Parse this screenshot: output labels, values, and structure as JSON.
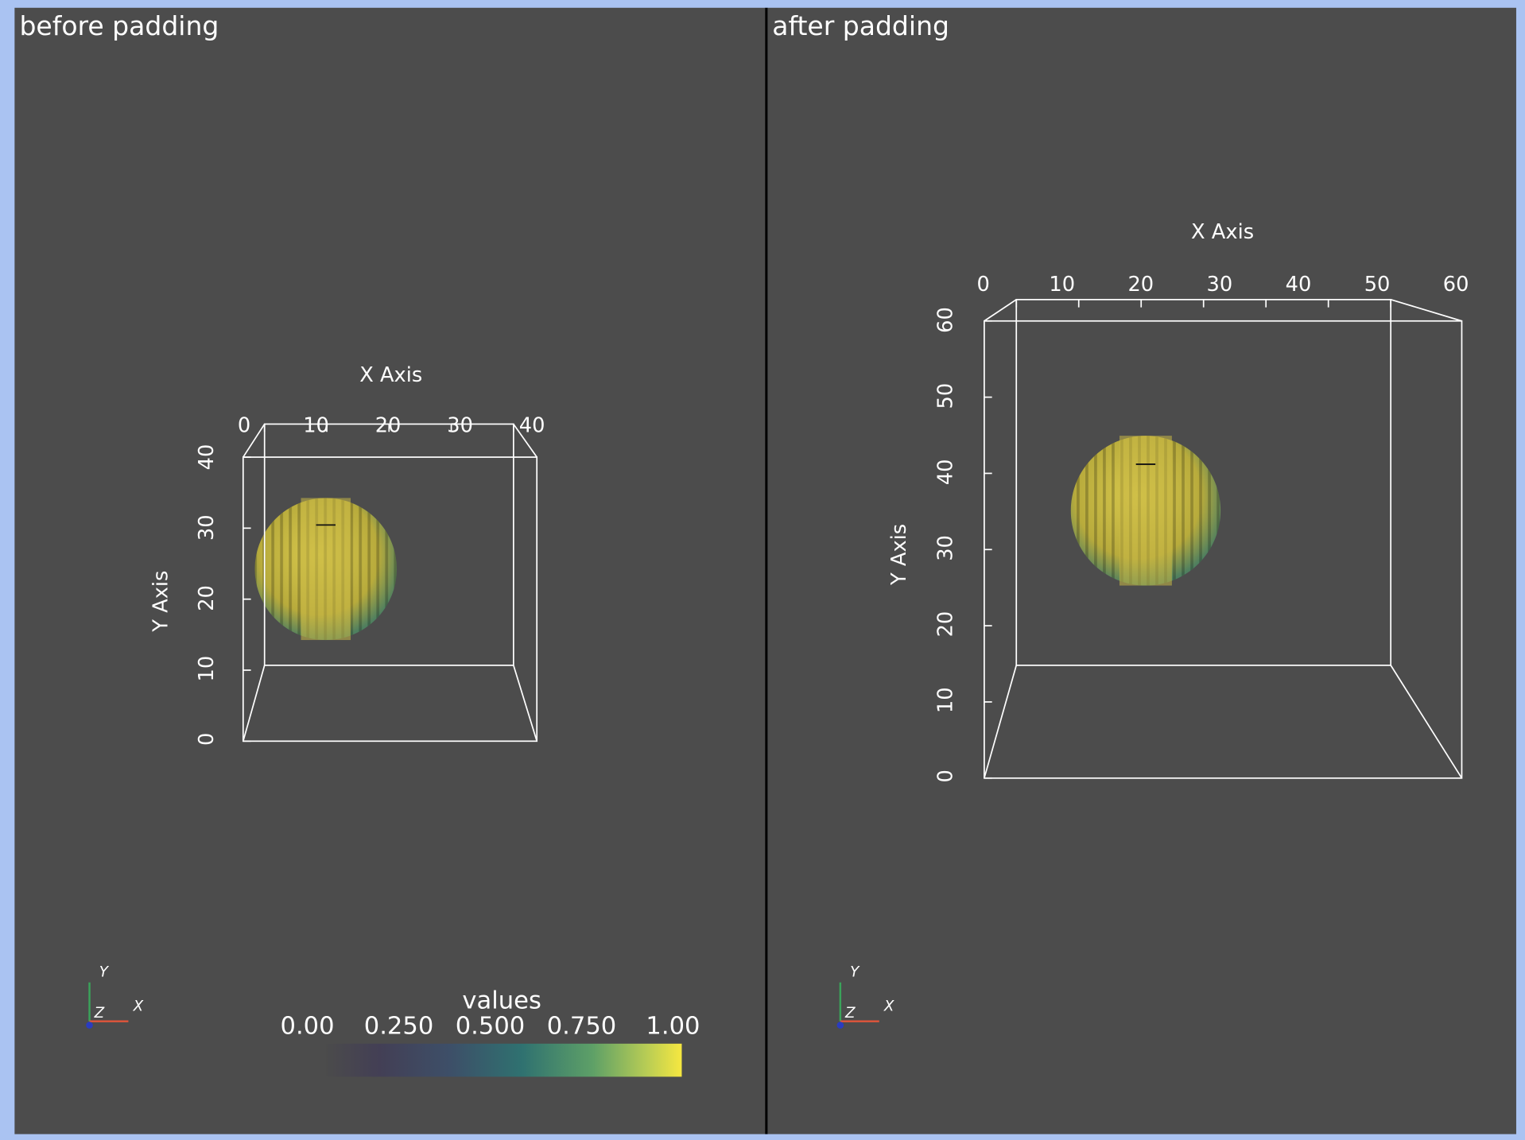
{
  "views": [
    {
      "title": "before padding",
      "x_axis": {
        "label": "X Axis",
        "ticks": [
          0,
          10,
          20,
          30,
          40
        ]
      },
      "y_axis": {
        "label": "Y Axis",
        "ticks": [
          0,
          10,
          20,
          30,
          40
        ]
      },
      "orientation": {
        "x": "X",
        "y": "Y",
        "z": "Z"
      }
    },
    {
      "title": "after padding",
      "x_axis": {
        "label": "X Axis",
        "ticks": [
          0,
          10,
          20,
          30,
          40,
          50,
          60
        ]
      },
      "y_axis": {
        "label": "Y Axis",
        "ticks": [
          0,
          10,
          20,
          30,
          40,
          50,
          60
        ]
      },
      "orientation": {
        "x": "X",
        "y": "Y",
        "z": "Z"
      }
    }
  ],
  "color_legend": {
    "title": "values",
    "ticks": [
      {
        "value": 0,
        "label": "0.00"
      },
      {
        "value": 0.25,
        "label": "0.250"
      },
      {
        "value": 0.5,
        "label": "0.500"
      },
      {
        "value": 0.75,
        "label": "0.750"
      },
      {
        "value": 1,
        "label": "1.00"
      }
    ]
  }
}
